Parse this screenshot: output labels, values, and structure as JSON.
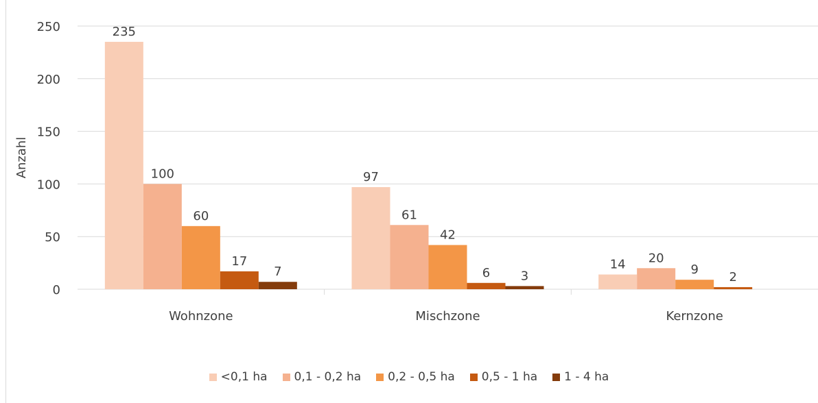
{
  "chart_data": {
    "type": "bar",
    "ylabel": "Anzahl",
    "ylim": [
      0,
      250
    ],
    "yticks": [
      "0",
      "50",
      "100",
      "150",
      "200",
      "250"
    ],
    "categories": [
      "Wohnzone",
      "Mischzone",
      "Kernzone"
    ],
    "grid": true,
    "legend_position": "bottom",
    "series": [
      {
        "name": "<0,1 ha",
        "color": "#f9cdb5",
        "values": [
          235,
          97,
          14
        ]
      },
      {
        "name": "0,1 - 0,2 ha",
        "color": "#f5b18f",
        "values": [
          100,
          61,
          20
        ]
      },
      {
        "name": "0,2 - 0,5 ha",
        "color": "#f39647",
        "values": [
          60,
          42,
          9
        ]
      },
      {
        "name": "0,5 - 1 ha",
        "color": "#c55a11",
        "values": [
          17,
          6,
          2
        ]
      },
      {
        "name": "1 - 4 ha",
        "color": "#843c0c",
        "values": [
          7,
          3,
          null
        ]
      }
    ],
    "data_labels": [
      [
        "235",
        "97",
        "14"
      ],
      [
        "100",
        "61",
        "20"
      ],
      [
        "60",
        "42",
        "9"
      ],
      [
        "17",
        "6",
        "2"
      ],
      [
        "7",
        "3",
        ""
      ]
    ]
  }
}
